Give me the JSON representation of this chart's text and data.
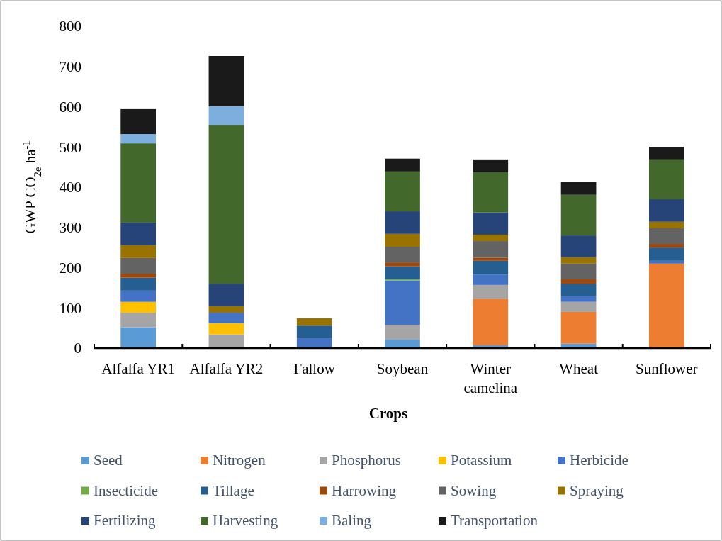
{
  "chart_data": {
    "type": "bar",
    "stacked": true,
    "xlabel": "Crops",
    "ylabel": "GWP CO$_{2e}$ ha$^{-1}$",
    "categories": [
      "Alfalfa YR1",
      "Alfalfa YR2",
      "Fallow",
      "Soybean",
      "Winter camelina",
      "Wheat",
      "Sunflower"
    ],
    "ylim": [
      0,
      800
    ],
    "yticks": [
      0,
      100,
      200,
      300,
      400,
      500,
      600,
      700,
      800
    ],
    "grid": false,
    "legend": "bottom",
    "series": [
      {
        "name": "Seed",
        "color": "#5b9bd5",
        "values": [
          52,
          0,
          0,
          21,
          7,
          11,
          0
        ]
      },
      {
        "name": "Nitrogen",
        "color": "#ed7d31",
        "values": [
          0,
          0,
          0,
          0,
          116,
          79,
          210
        ]
      },
      {
        "name": "Phosphorus",
        "color": "#a5a5a5",
        "values": [
          36,
          34,
          0,
          37,
          34,
          25,
          0
        ]
      },
      {
        "name": "Potassium",
        "color": "#ffc000",
        "values": [
          27,
          28,
          0,
          0,
          0,
          0,
          0
        ]
      },
      {
        "name": "Herbicide",
        "color": "#4472c4",
        "values": [
          28,
          26,
          25,
          110,
          26,
          14,
          7
        ]
      },
      {
        "name": "Insecticide",
        "color": "#70ad47",
        "values": [
          0,
          0,
          0,
          3,
          0,
          0,
          0
        ]
      },
      {
        "name": "Tillage",
        "color": "#255e91",
        "values": [
          32,
          0,
          31,
          32,
          34,
          31,
          33
        ]
      },
      {
        "name": "Harrowing",
        "color": "#9e480e",
        "values": [
          10,
          0,
          0,
          10,
          8,
          11,
          9
        ]
      },
      {
        "name": "Sowing",
        "color": "#636363",
        "values": [
          39,
          0,
          0,
          39,
          41,
          39,
          39
        ]
      },
      {
        "name": "Spraying",
        "color": "#997300",
        "values": [
          32,
          16,
          18,
          32,
          16,
          16,
          16
        ]
      },
      {
        "name": "Fertilizing",
        "color": "#264478",
        "values": [
          56,
          56,
          0,
          56,
          55,
          54,
          56
        ]
      },
      {
        "name": "Harvesting",
        "color": "#43682b",
        "values": [
          197,
          395,
          0,
          99,
          100,
          101,
          99
        ]
      },
      {
        "name": "Baling",
        "color": "#7cafdd",
        "values": [
          23,
          46,
          0,
          0,
          0,
          0,
          0
        ]
      },
      {
        "name": "Transportation",
        "color": "#1a1a1a",
        "values": [
          62,
          125,
          0,
          32,
          32,
          32,
          31
        ]
      }
    ]
  }
}
